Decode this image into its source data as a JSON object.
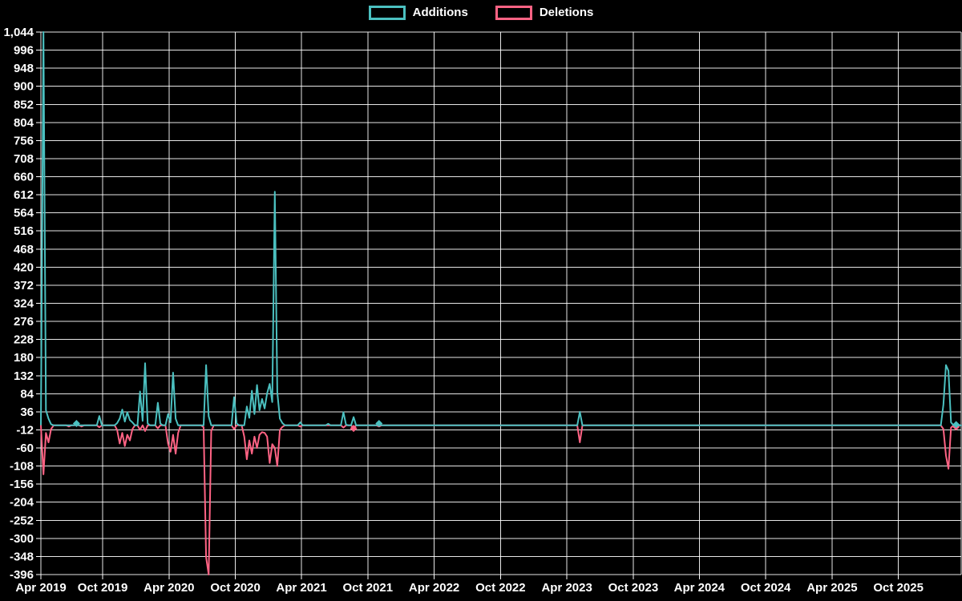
{
  "legend": {
    "additions_label": "Additions",
    "deletions_label": "Deletions"
  },
  "colors": {
    "additions": "#4BC0C0",
    "deletions": "#FF6384",
    "grid": "#FFFFFF",
    "text": "#FFFFFF",
    "background": "#000000"
  },
  "chart_data": {
    "type": "line",
    "title": "",
    "xlabel": "",
    "ylabel": "",
    "legend_position": "top-center",
    "grid": true,
    "x_axis": {
      "tick_labels": [
        "Apr 2019",
        "Oct 2019",
        "Apr 2020",
        "Oct 2020",
        "Apr 2021",
        "Oct 2021",
        "Apr 2022",
        "Oct 2022",
        "Apr 2023",
        "Oct 2023",
        "Apr 2024",
        "Oct 2024",
        "Apr 2025",
        "Oct 2025"
      ],
      "tick_weeks": [
        0,
        24.3,
        50.4,
        76.5,
        102.5,
        128.6,
        154.7,
        180.8,
        206.9,
        233.0,
        259.0,
        285.1,
        311.2,
        337.3
      ],
      "total_weeks": 362,
      "unit": "weeks since mid-Apr 2019"
    },
    "y_axis": {
      "min": -396,
      "max": 1044,
      "step": 48,
      "tick_labels": [
        "1,044",
        "996",
        "948",
        "900",
        "852",
        "804",
        "756",
        "708",
        "660",
        "612",
        "564",
        "516",
        "468",
        "420",
        "372",
        "324",
        "276",
        "228",
        "180",
        "132",
        "84",
        "36",
        "-12",
        "-60",
        "-108",
        "-156",
        "-204",
        "-252",
        "-300",
        "-348",
        "-396"
      ]
    },
    "baseline_value": 0,
    "series": [
      {
        "name": "Additions",
        "color_key": "additions",
        "default_value": 0,
        "points": [
          [
            0,
            2
          ],
          [
            1,
            1044
          ],
          [
            2,
            40
          ],
          [
            3,
            18
          ],
          [
            4,
            3
          ],
          [
            14,
            5
          ],
          [
            23,
            25
          ],
          [
            30,
            6
          ],
          [
            31,
            18
          ],
          [
            32,
            42
          ],
          [
            33,
            10
          ],
          [
            34,
            35
          ],
          [
            35,
            14
          ],
          [
            36,
            8
          ],
          [
            39,
            90
          ],
          [
            40,
            12
          ],
          [
            41,
            165
          ],
          [
            42,
            5
          ],
          [
            46,
            60
          ],
          [
            47,
            5
          ],
          [
            50,
            30
          ],
          [
            51,
            8
          ],
          [
            52,
            140
          ],
          [
            53,
            18
          ],
          [
            65,
            160
          ],
          [
            66,
            24
          ],
          [
            76,
            75
          ],
          [
            77,
            5
          ],
          [
            81,
            50
          ],
          [
            82,
            20
          ],
          [
            83,
            92
          ],
          [
            84,
            30
          ],
          [
            85,
            107
          ],
          [
            86,
            40
          ],
          [
            87,
            70
          ],
          [
            88,
            45
          ],
          [
            89,
            85
          ],
          [
            90,
            110
          ],
          [
            91,
            62
          ],
          [
            92,
            620
          ],
          [
            93,
            88
          ],
          [
            94,
            18
          ],
          [
            95,
            6
          ],
          [
            102,
            8
          ],
          [
            113,
            4
          ],
          [
            119,
            35
          ],
          [
            120,
            2
          ],
          [
            123,
            22
          ],
          [
            133,
            5
          ],
          [
            212,
            36
          ],
          [
            355,
            55
          ],
          [
            356,
            160
          ],
          [
            357,
            145
          ],
          [
            358,
            8
          ],
          [
            360,
            2
          ]
        ],
        "markers": [
          [
            14,
            5
          ],
          [
            133,
            5
          ],
          [
            360,
            2
          ]
        ]
      },
      {
        "name": "Deletions",
        "color_key": "deletions",
        "default_value": 0,
        "points": [
          [
            1,
            -130
          ],
          [
            2,
            -20
          ],
          [
            3,
            -45
          ],
          [
            4,
            -10
          ],
          [
            11,
            -3
          ],
          [
            16,
            -3
          ],
          [
            23,
            -5
          ],
          [
            30,
            -12
          ],
          [
            31,
            -48
          ],
          [
            32,
            -20
          ],
          [
            33,
            -55
          ],
          [
            34,
            -25
          ],
          [
            35,
            -40
          ],
          [
            36,
            -10
          ],
          [
            39,
            -12
          ],
          [
            41,
            -15
          ],
          [
            46,
            -8
          ],
          [
            50,
            -48
          ],
          [
            51,
            -70
          ],
          [
            52,
            -25
          ],
          [
            53,
            -75
          ],
          [
            54,
            -20
          ],
          [
            64,
            -5
          ],
          [
            65,
            -350
          ],
          [
            66,
            -396
          ],
          [
            67,
            -15
          ],
          [
            76,
            -10
          ],
          [
            80,
            -30
          ],
          [
            81,
            -90
          ],
          [
            82,
            -40
          ],
          [
            83,
            -75
          ],
          [
            84,
            -30
          ],
          [
            85,
            -60
          ],
          [
            86,
            -25
          ],
          [
            87,
            -18
          ],
          [
            88,
            -20
          ],
          [
            89,
            -30
          ],
          [
            90,
            -100
          ],
          [
            91,
            -50
          ],
          [
            92,
            -60
          ],
          [
            93,
            -108
          ],
          [
            94,
            -12
          ],
          [
            95,
            -4
          ],
          [
            102,
            -3
          ],
          [
            119,
            -6
          ],
          [
            123,
            -8
          ],
          [
            133,
            -3
          ],
          [
            212,
            -45
          ],
          [
            355,
            -10
          ],
          [
            356,
            -80
          ],
          [
            357,
            -115
          ],
          [
            358,
            -6
          ],
          [
            360,
            -4
          ]
        ],
        "markers": [
          [
            123,
            -8
          ],
          [
            360,
            -4
          ]
        ]
      }
    ]
  }
}
